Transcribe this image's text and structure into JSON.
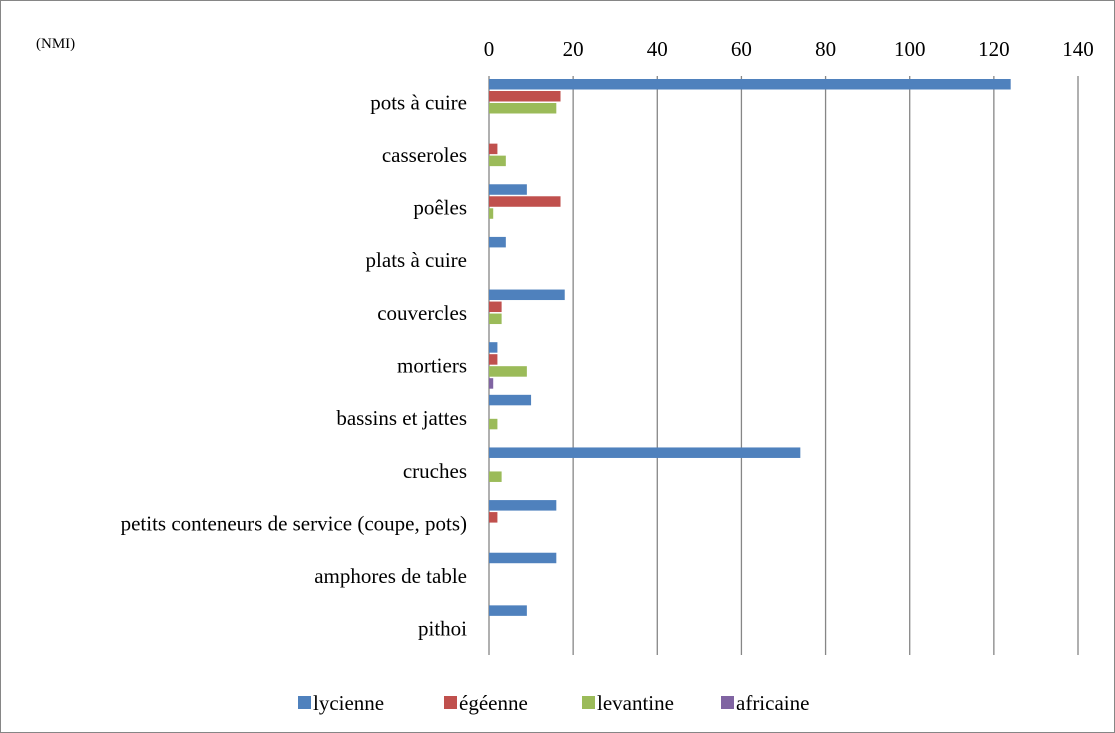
{
  "chart_data": {
    "type": "bar",
    "orientation": "horizontal",
    "unit_label": "(NMI)",
    "x_axis_position": "top",
    "xlim": [
      0,
      140
    ],
    "xticks": [
      0,
      20,
      40,
      60,
      80,
      100,
      120,
      140
    ],
    "grid": true,
    "legend_position": "bottom",
    "categories": [
      "pots à cuire",
      "casseroles",
      "poêles",
      "plats à cuire",
      "couvercles",
      "mortiers",
      "bassins et jattes",
      "cruches",
      "petits conteneurs de service (coupe, pots)",
      "amphores de table",
      "pithoi"
    ],
    "series": [
      {
        "name": "lycienne",
        "color": "#4F81BD",
        "values": [
          124,
          0,
          9,
          4,
          18,
          2,
          10,
          74,
          16,
          16,
          9
        ]
      },
      {
        "name": "égéenne",
        "color": "#C0504D",
        "values": [
          17,
          2,
          17,
          0,
          3,
          2,
          0,
          0,
          2,
          0,
          0
        ]
      },
      {
        "name": "levantine",
        "color": "#9BBB59",
        "values": [
          16,
          4,
          1,
          0,
          3,
          9,
          2,
          3,
          0,
          0,
          0
        ]
      },
      {
        "name": "africaine",
        "color": "#8064A2",
        "values": [
          0,
          0,
          0,
          0,
          0,
          1,
          0,
          0,
          0,
          0,
          0
        ]
      }
    ]
  }
}
